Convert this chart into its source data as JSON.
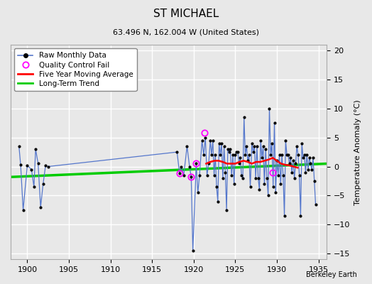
{
  "title": "ST MICHAEL",
  "subtitle": "63.496 N, 162.004 W (United States)",
  "ylabel": "Temperature Anomaly (°C)",
  "credit": "Berkeley Earth",
  "xlim": [
    1898,
    1936
  ],
  "ylim": [
    -16,
    21
  ],
  "yticks": [
    -15,
    -10,
    -5,
    0,
    5,
    10,
    15,
    20
  ],
  "xticks": [
    1900,
    1905,
    1910,
    1915,
    1920,
    1925,
    1930,
    1935
  ],
  "bg_color": "#e8e8e8",
  "grid_color": "white",
  "raw_line_color": "#5577cc",
  "raw_marker_color": "black",
  "moving_avg_color": "red",
  "trend_color": "#00cc00",
  "qc_fail_color": "magenta",
  "raw_data": [
    [
      1899.0,
      3.5
    ],
    [
      1899.2,
      0.3
    ],
    [
      1899.5,
      -7.5
    ],
    [
      1900.0,
      0.2
    ],
    [
      1900.5,
      -0.5
    ],
    [
      1900.8,
      -3.5
    ],
    [
      1901.0,
      3.0
    ],
    [
      1901.3,
      0.5
    ],
    [
      1901.6,
      -7.0
    ],
    [
      1901.9,
      -3.0
    ],
    [
      1902.2,
      0.2
    ],
    [
      1902.5,
      0.0
    ],
    [
      1918.0,
      2.5
    ],
    [
      1918.3,
      -1.2
    ],
    [
      1918.5,
      0.0
    ],
    [
      1918.8,
      -1.5
    ],
    [
      1919.2,
      3.5
    ],
    [
      1919.5,
      0.0
    ],
    [
      1919.7,
      -1.8
    ],
    [
      1919.9,
      -14.5
    ],
    [
      1920.3,
      0.5
    ],
    [
      1920.5,
      -4.5
    ],
    [
      1920.7,
      -1.5
    ],
    [
      1921.0,
      4.5
    ],
    [
      1921.2,
      2.0
    ],
    [
      1921.4,
      5.0
    ],
    [
      1921.6,
      -1.5
    ],
    [
      1921.8,
      0.5
    ],
    [
      1922.0,
      4.5
    ],
    [
      1922.15,
      2.0
    ],
    [
      1922.3,
      4.5
    ],
    [
      1922.45,
      -1.5
    ],
    [
      1922.6,
      2.0
    ],
    [
      1922.75,
      -3.5
    ],
    [
      1922.9,
      -6.0
    ],
    [
      1923.05,
      4.0
    ],
    [
      1923.2,
      2.0
    ],
    [
      1923.35,
      4.0
    ],
    [
      1923.5,
      -2.0
    ],
    [
      1923.65,
      3.5
    ],
    [
      1923.8,
      -1.0
    ],
    [
      1923.95,
      -7.5
    ],
    [
      1924.1,
      3.0
    ],
    [
      1924.25,
      2.5
    ],
    [
      1924.4,
      3.0
    ],
    [
      1924.55,
      -1.5
    ],
    [
      1924.7,
      2.0
    ],
    [
      1924.85,
      -3.0
    ],
    [
      1925.0,
      2.0
    ],
    [
      1925.15,
      2.5
    ],
    [
      1925.3,
      2.5
    ],
    [
      1925.45,
      0.5
    ],
    [
      1925.6,
      1.5
    ],
    [
      1925.75,
      -1.5
    ],
    [
      1925.9,
      -2.0
    ],
    [
      1926.05,
      8.5
    ],
    [
      1926.2,
      2.0
    ],
    [
      1926.35,
      3.5
    ],
    [
      1926.5,
      1.0
    ],
    [
      1926.65,
      2.0
    ],
    [
      1926.8,
      -3.5
    ],
    [
      1927.0,
      4.0
    ],
    [
      1927.15,
      2.5
    ],
    [
      1927.3,
      3.5
    ],
    [
      1927.45,
      -2.0
    ],
    [
      1927.6,
      3.5
    ],
    [
      1927.75,
      -2.0
    ],
    [
      1927.9,
      -4.0
    ],
    [
      1928.05,
      4.5
    ],
    [
      1928.2,
      1.5
    ],
    [
      1928.35,
      3.5
    ],
    [
      1928.5,
      -3.0
    ],
    [
      1928.65,
      3.0
    ],
    [
      1928.8,
      -2.0
    ],
    [
      1928.95,
      -5.0
    ],
    [
      1929.1,
      10.0
    ],
    [
      1929.25,
      2.0
    ],
    [
      1929.4,
      4.0
    ],
    [
      1929.55,
      -3.5
    ],
    [
      1929.7,
      7.5
    ],
    [
      1929.85,
      -4.5
    ],
    [
      1930.0,
      1.0
    ],
    [
      1930.15,
      -1.5
    ],
    [
      1930.3,
      2.0
    ],
    [
      1930.45,
      -3.0
    ],
    [
      1930.6,
      2.0
    ],
    [
      1930.75,
      -1.5
    ],
    [
      1930.9,
      -8.5
    ],
    [
      1931.05,
      4.5
    ],
    [
      1931.2,
      2.0
    ],
    [
      1931.35,
      2.0
    ],
    [
      1931.5,
      0.5
    ],
    [
      1931.65,
      1.5
    ],
    [
      1931.8,
      -1.0
    ],
    [
      1931.95,
      1.0
    ],
    [
      1932.1,
      -2.0
    ],
    [
      1932.25,
      0.5
    ],
    [
      1932.4,
      3.5
    ],
    [
      1932.55,
      2.0
    ],
    [
      1932.7,
      -1.5
    ],
    [
      1932.85,
      -8.5
    ],
    [
      1933.0,
      4.0
    ],
    [
      1933.15,
      1.5
    ],
    [
      1933.3,
      2.0
    ],
    [
      1933.45,
      -1.0
    ],
    [
      1933.6,
      2.0
    ],
    [
      1933.75,
      -0.5
    ],
    [
      1933.9,
      1.5
    ],
    [
      1934.05,
      0.5
    ],
    [
      1934.2,
      -0.5
    ],
    [
      1934.35,
      1.5
    ],
    [
      1934.5,
      -2.5
    ],
    [
      1934.65,
      -6.5
    ]
  ],
  "qc_fail_points": [
    [
      1918.3,
      -1.2
    ],
    [
      1919.7,
      -1.8
    ],
    [
      1920.3,
      0.5
    ],
    [
      1921.3,
      5.8
    ],
    [
      1929.5,
      -1.0
    ]
  ],
  "moving_avg": [
    [
      1921.5,
      0.5
    ],
    [
      1922.0,
      0.8
    ],
    [
      1922.5,
      1.0
    ],
    [
      1923.0,
      1.0
    ],
    [
      1923.5,
      0.8
    ],
    [
      1924.0,
      0.5
    ],
    [
      1924.5,
      0.5
    ],
    [
      1925.0,
      0.5
    ],
    [
      1925.5,
      0.8
    ],
    [
      1926.0,
      1.0
    ],
    [
      1926.5,
      0.8
    ],
    [
      1927.0,
      0.5
    ],
    [
      1927.5,
      0.8
    ],
    [
      1928.0,
      0.8
    ],
    [
      1928.5,
      1.0
    ],
    [
      1929.0,
      1.2
    ],
    [
      1929.5,
      1.5
    ],
    [
      1930.0,
      1.0
    ],
    [
      1930.5,
      0.5
    ],
    [
      1931.0,
      0.3
    ],
    [
      1931.5,
      0.2
    ],
    [
      1932.0,
      0.0
    ],
    [
      1932.5,
      -0.2
    ]
  ],
  "trend_x": [
    1898,
    1936
  ],
  "trend_y": [
    -1.8,
    0.5
  ],
  "title_fontsize": 11,
  "subtitle_fontsize": 8,
  "legend_fontsize": 7.5,
  "tick_fontsize": 8
}
